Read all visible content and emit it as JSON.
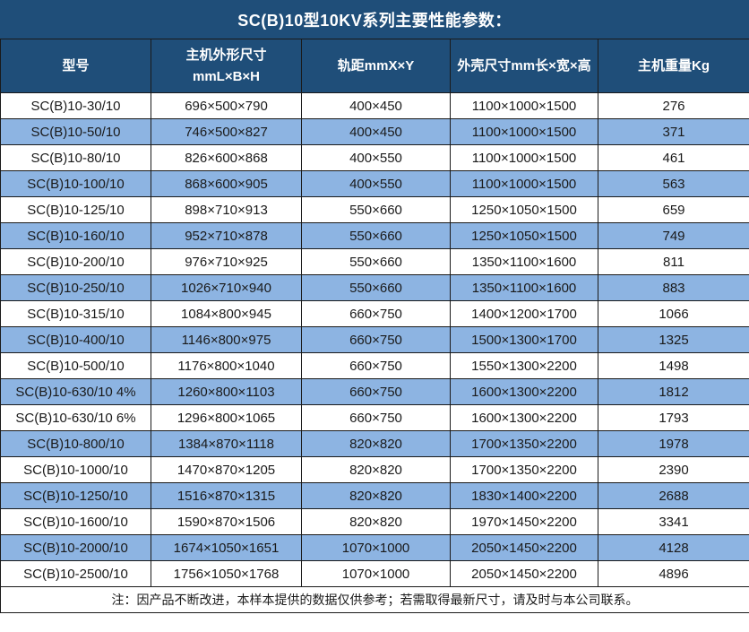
{
  "title": "SC(B)10型10KV系列主要性能参数：",
  "colors": {
    "header_bg": "#1F4E79",
    "header_text": "#ffffff",
    "row_alt_bg": "#8DB4E2",
    "row_bg": "#ffffff",
    "border": "#1a1a1a",
    "body_text": "#1a1a1a"
  },
  "table": {
    "headers": [
      "型号",
      "主机外形尺寸\nmmL×B×H",
      "轨距mmX×Y",
      "外壳尺寸mm长×宽×高",
      "主机重量Kg"
    ],
    "rows": [
      [
        "SC(B)10-30/10",
        "696×500×790",
        "400×450",
        "1100×1000×1500",
        "276"
      ],
      [
        "SC(B)10-50/10",
        "746×500×827",
        "400×450",
        "1100×1000×1500",
        "371"
      ],
      [
        "SC(B)10-80/10",
        "826×600×868",
        "400×550",
        "1100×1000×1500",
        "461"
      ],
      [
        "SC(B)10-100/10",
        "868×600×905",
        "400×550",
        "1100×1000×1500",
        "563"
      ],
      [
        "SC(B)10-125/10",
        "898×710×913",
        "550×660",
        "1250×1050×1500",
        "659"
      ],
      [
        "SC(B)10-160/10",
        "952×710×878",
        "550×660",
        "1250×1050×1500",
        "749"
      ],
      [
        "SC(B)10-200/10",
        "976×710×925",
        "550×660",
        "1350×1100×1600",
        "811"
      ],
      [
        "SC(B)10-250/10",
        "1026×710×940",
        "550×660",
        "1350×1100×1600",
        "883"
      ],
      [
        "SC(B)10-315/10",
        "1084×800×945",
        "660×750",
        "1400×1200×1700",
        "1066"
      ],
      [
        "SC(B)10-400/10",
        "1146×800×975",
        "660×750",
        "1500×1300×1700",
        "1325"
      ],
      [
        "SC(B)10-500/10",
        "1176×800×1040",
        "660×750",
        "1550×1300×2200",
        "1498"
      ],
      [
        "SC(B)10-630/10 4%",
        "1260×800×1103",
        "660×750",
        "1600×1300×2200",
        "1812"
      ],
      [
        "SC(B)10-630/10 6%",
        "1296×800×1065",
        "660×750",
        "1600×1300×2200",
        "1793"
      ],
      [
        "SC(B)10-800/10",
        "1384×870×1118",
        "820×820",
        "1700×1350×2200",
        "1978"
      ],
      [
        "SC(B)10-1000/10",
        "1470×870×1205",
        "820×820",
        "1700×1350×2200",
        "2390"
      ],
      [
        "SC(B)10-1250/10",
        "1516×870×1315",
        "820×820",
        "1830×1400×2200",
        "2688"
      ],
      [
        "SC(B)10-1600/10",
        "1590×870×1506",
        "820×820",
        "1970×1450×2200",
        "3341"
      ],
      [
        "SC(B)10-2000/10",
        "1674×1050×1651",
        "1070×1000",
        "2050×1450×2200",
        "4128"
      ],
      [
        "SC(B)10-2500/10",
        "1756×1050×1768",
        "1070×1000",
        "2050×1450×2200",
        "4896"
      ]
    ]
  },
  "footnote": "注：因产品不断改进，本样本提供的数据仅供参考；若需取得最新尺寸，请及时与本公司联系。"
}
